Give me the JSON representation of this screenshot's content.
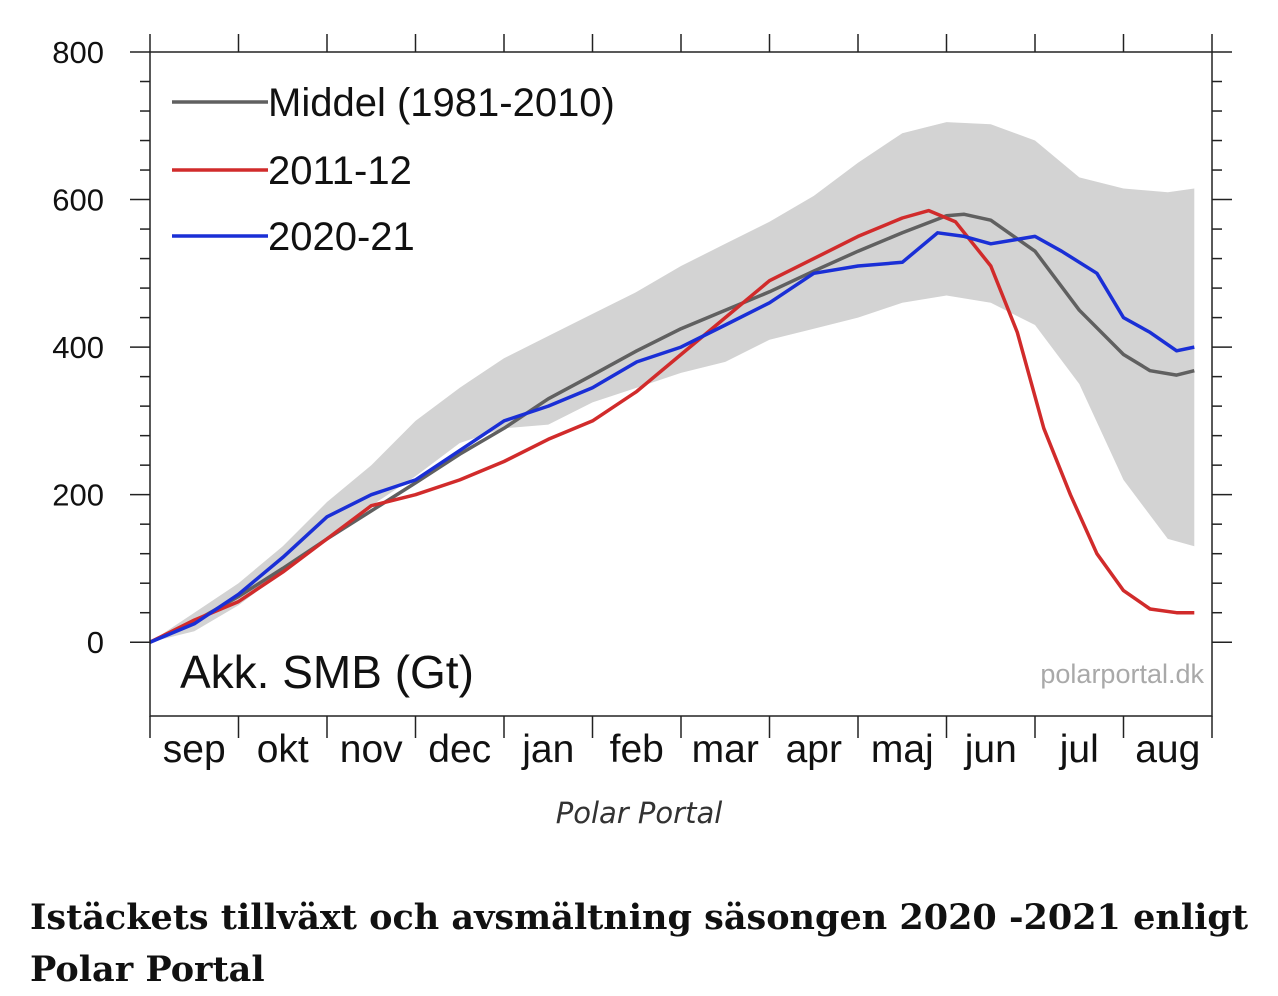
{
  "chart_data": {
    "type": "line",
    "ylabel": "Akk. SMB (Gt)",
    "ylim": [
      -100,
      800
    ],
    "yticks": [
      0,
      200,
      400,
      600,
      800
    ],
    "categories": [
      "sep",
      "okt",
      "nov",
      "dec",
      "jan",
      "feb",
      "mar",
      "apr",
      "maj",
      "jun",
      "jul",
      "aug"
    ],
    "watermark": "polarportal.dk",
    "band": {
      "name": "range",
      "x": [
        0,
        0.5,
        1,
        1.5,
        2,
        2.5,
        3,
        3.5,
        4,
        4.5,
        5,
        5.5,
        6,
        6.5,
        7,
        7.5,
        8,
        8.5,
        9,
        9.5,
        10,
        10.5,
        11,
        11.5,
        11.8
      ],
      "upper": [
        0,
        40,
        80,
        130,
        190,
        240,
        300,
        345,
        385,
        415,
        445,
        475,
        510,
        540,
        570,
        605,
        650,
        690,
        705,
        702,
        680,
        630,
        615,
        610,
        615
      ],
      "lower": [
        0,
        15,
        50,
        95,
        140,
        185,
        225,
        270,
        290,
        295,
        325,
        345,
        365,
        380,
        410,
        425,
        440,
        460,
        470,
        460,
        430,
        350,
        220,
        140,
        130
      ]
    },
    "series": [
      {
        "name": "Middel (1981-2010)",
        "color": "#606060",
        "x": [
          0,
          0.5,
          1,
          1.5,
          2,
          2.5,
          3,
          3.5,
          4,
          4.5,
          5,
          5.5,
          6,
          6.5,
          7,
          7.5,
          8,
          8.5,
          9,
          9.2,
          9.5,
          10,
          10.5,
          11,
          11.3,
          11.6,
          11.8
        ],
        "values": [
          0,
          28,
          62,
          100,
          140,
          178,
          216,
          255,
          290,
          330,
          362,
          395,
          425,
          450,
          475,
          503,
          530,
          555,
          578,
          580,
          572,
          530,
          450,
          390,
          368,
          362,
          368
        ]
      },
      {
        "name": "2011-12",
        "color": "#d12b2b",
        "x": [
          0,
          0.5,
          1,
          1.5,
          2,
          2.5,
          3,
          3.5,
          4,
          4.5,
          5,
          5.5,
          6,
          6.5,
          7,
          7.5,
          8,
          8.5,
          8.8,
          9.1,
          9.5,
          9.8,
          10.1,
          10.4,
          10.7,
          11,
          11.3,
          11.6,
          11.8
        ],
        "values": [
          0,
          30,
          55,
          95,
          140,
          185,
          200,
          220,
          245,
          275,
          300,
          340,
          390,
          440,
          490,
          520,
          550,
          575,
          585,
          570,
          510,
          420,
          290,
          200,
          120,
          70,
          45,
          40,
          40
        ]
      },
      {
        "name": "2020-21",
        "color": "#1a2fd6",
        "x": [
          0,
          0.5,
          1,
          1.5,
          2,
          2.5,
          3,
          3.5,
          4,
          4.5,
          5,
          5.5,
          6,
          6.5,
          7,
          7.5,
          8,
          8.5,
          8.9,
          9.2,
          9.5,
          10,
          10.3,
          10.7,
          11,
          11.3,
          11.6,
          11.8
        ],
        "values": [
          0,
          25,
          65,
          115,
          170,
          200,
          220,
          260,
          300,
          320,
          345,
          380,
          400,
          430,
          460,
          500,
          510,
          515,
          555,
          550,
          540,
          550,
          530,
          500,
          440,
          420,
          395,
          400
        ]
      }
    ]
  },
  "caption": "Polar Portal",
  "headline": "Istäckets tillväxt och avsmältning säsongen 2020 -2021 enligt Polar Portal"
}
